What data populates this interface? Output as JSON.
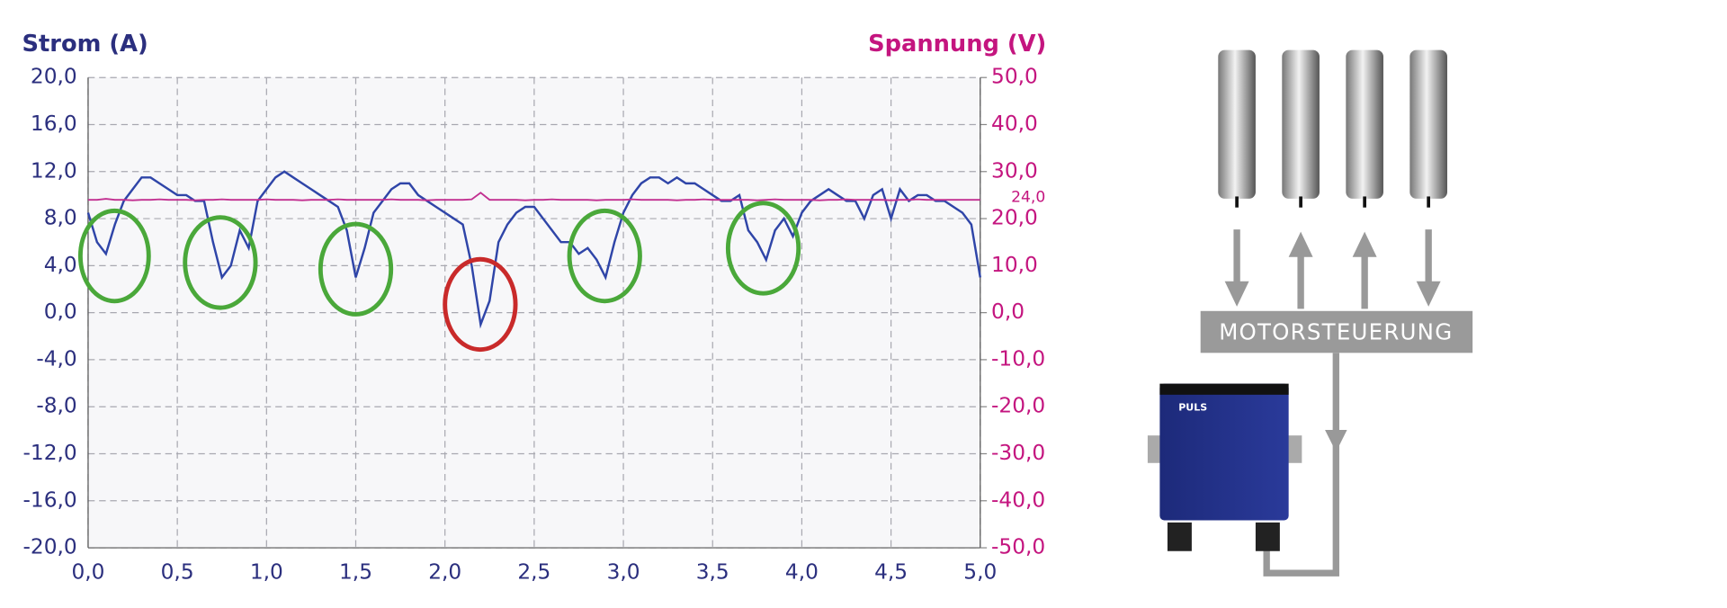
{
  "chart_data": {
    "type": "line",
    "y_label": "Strom (A)",
    "y2_label": "Spannung (V)",
    "x": [
      0,
      0.05,
      0.1,
      0.15,
      0.2,
      0.25,
      0.3,
      0.35,
      0.4,
      0.45,
      0.5,
      0.55,
      0.6,
      0.65,
      0.7,
      0.75,
      0.8,
      0.85,
      0.9,
      0.95,
      1,
      1.05,
      1.1,
      1.15,
      1.2,
      1.25,
      1.3,
      1.35,
      1.4,
      1.45,
      1.5,
      1.55,
      1.6,
      1.65,
      1.7,
      1.75,
      1.8,
      1.85,
      1.9,
      1.95,
      2,
      2.05,
      2.1,
      2.15,
      2.2,
      2.25,
      2.3,
      2.35,
      2.4,
      2.45,
      2.5,
      2.55,
      2.6,
      2.65,
      2.7,
      2.75,
      2.8,
      2.85,
      2.9,
      2.95,
      3,
      3.05,
      3.1,
      3.15,
      3.2,
      3.25,
      3.3,
      3.35,
      3.4,
      3.45,
      3.5,
      3.55,
      3.6,
      3.65,
      3.7,
      3.75,
      3.8,
      3.85,
      3.9,
      3.95,
      4,
      4.05,
      4.1,
      4.15,
      4.2,
      4.25,
      4.3,
      4.35,
      4.4,
      4.45,
      4.5,
      4.55,
      4.6,
      4.65,
      4.7,
      4.75,
      4.8,
      4.85,
      4.9,
      4.95,
      5
    ],
    "series": [
      {
        "name": "Strom",
        "color": "#2f45a8",
        "values": [
          8.5,
          6,
          5,
          7.5,
          9.5,
          10.5,
          11.5,
          11.5,
          11,
          10.5,
          10,
          10,
          9.5,
          9.5,
          6,
          3,
          4,
          7,
          5.5,
          9.5,
          10.5,
          11.5,
          12,
          11.5,
          11,
          10.5,
          10,
          9.5,
          9,
          7,
          3,
          5.5,
          8.5,
          9.5,
          10.5,
          11,
          11,
          10,
          9.5,
          9,
          8.5,
          8,
          7.5,
          4,
          -1,
          1,
          6,
          7.5,
          8.5,
          9,
          9,
          8,
          7,
          6,
          6,
          5,
          5.5,
          4.5,
          3,
          6,
          8.5,
          10,
          11,
          11.5,
          11.5,
          11,
          11.5,
          11,
          11,
          10.5,
          10,
          9.5,
          9.5,
          10,
          7,
          6,
          4.5,
          7,
          8,
          6.5,
          8.5,
          9.5,
          10,
          10.5,
          10,
          9.5,
          9.5,
          8,
          10,
          10.5,
          8,
          10.5,
          9.5,
          10,
          10,
          9.5,
          9.5,
          9,
          8.5,
          7.5,
          3
        ]
      },
      {
        "name": "Spannung",
        "color": "#c22f90",
        "axis": "y2",
        "values": [
          24,
          24,
          24.2,
          24,
          24,
          23.9,
          24,
          24,
          24.1,
          24,
          24,
          24,
          23.9,
          24,
          24,
          24.1,
          24,
          24,
          24,
          24,
          24.1,
          24,
          24,
          24,
          23.9,
          24,
          24,
          24,
          24.1,
          24,
          24,
          24,
          24,
          24,
          24.1,
          24,
          24,
          24,
          23.9,
          24,
          24,
          24,
          24,
          24.1,
          25.5,
          24,
          24,
          24,
          24,
          23.9,
          24,
          24,
          24.1,
          24,
          24,
          24,
          24,
          23.9,
          24,
          24,
          24,
          24.1,
          24,
          24,
          24,
          24,
          23.9,
          24,
          24,
          24.1,
          24,
          24,
          24,
          24,
          24,
          23.9,
          24,
          24.1,
          24,
          24,
          24,
          24,
          23.9,
          24,
          24,
          24.1,
          24,
          24,
          24,
          24,
          23.9,
          24,
          24,
          24.1,
          24,
          24,
          24,
          24,
          24,
          24,
          24
        ]
      }
    ],
    "xlim": [
      0,
      5
    ],
    "xticks": [
      {
        "value": 0,
        "label": "0,0"
      },
      {
        "value": 0.5,
        "label": "0,5"
      },
      {
        "value": 1,
        "label": "1,0"
      },
      {
        "value": 1.5,
        "label": "1,5"
      },
      {
        "value": 2,
        "label": "2,0"
      },
      {
        "value": 2.5,
        "label": "2,5"
      },
      {
        "value": 3,
        "label": "3,0"
      },
      {
        "value": 3.5,
        "label": "3,5"
      },
      {
        "value": 4,
        "label": "4,0"
      },
      {
        "value": 4.5,
        "label": "4,5"
      },
      {
        "value": 5,
        "label": "5,0"
      }
    ],
    "ylim": [
      -20,
      20
    ],
    "yticks": [
      {
        "value": -20,
        "label": "-20,0"
      },
      {
        "value": -16,
        "label": "-16,0"
      },
      {
        "value": -12,
        "label": "-12,0"
      },
      {
        "value": -8,
        "label": "-8,0"
      },
      {
        "value": -4,
        "label": "-4,0"
      },
      {
        "value": 0,
        "label": "0,0"
      },
      {
        "value": 4,
        "label": "4,0"
      },
      {
        "value": 8,
        "label": "8,0"
      },
      {
        "value": 12,
        "label": "12,0"
      },
      {
        "value": 16,
        "label": "16,0"
      },
      {
        "value": 20,
        "label": "20,0"
      }
    ],
    "y2lim": [
      -50,
      50
    ],
    "y2ticks": [
      {
        "value": -50,
        "label": "-50,0"
      },
      {
        "value": -40,
        "label": "-40,0"
      },
      {
        "value": -30,
        "label": "-30,0"
      },
      {
        "value": -20,
        "label": "-20,0"
      },
      {
        "value": -10,
        "label": "-10,0"
      },
      {
        "value": 0,
        "label": "0,0"
      },
      {
        "value": 10,
        "label": "10,0"
      },
      {
        "value": 20,
        "label": "20,0"
      },
      {
        "value": 30,
        "label": "30,0"
      },
      {
        "value": 40,
        "label": "40,0"
      },
      {
        "value": 50,
        "label": "50,0"
      }
    ],
    "annotation": {
      "value": 24,
      "label": "24,0"
    },
    "grid": true
  },
  "diagram": {
    "control_label": "MOTORSTEUERUNG",
    "device_brand": "PULS"
  }
}
